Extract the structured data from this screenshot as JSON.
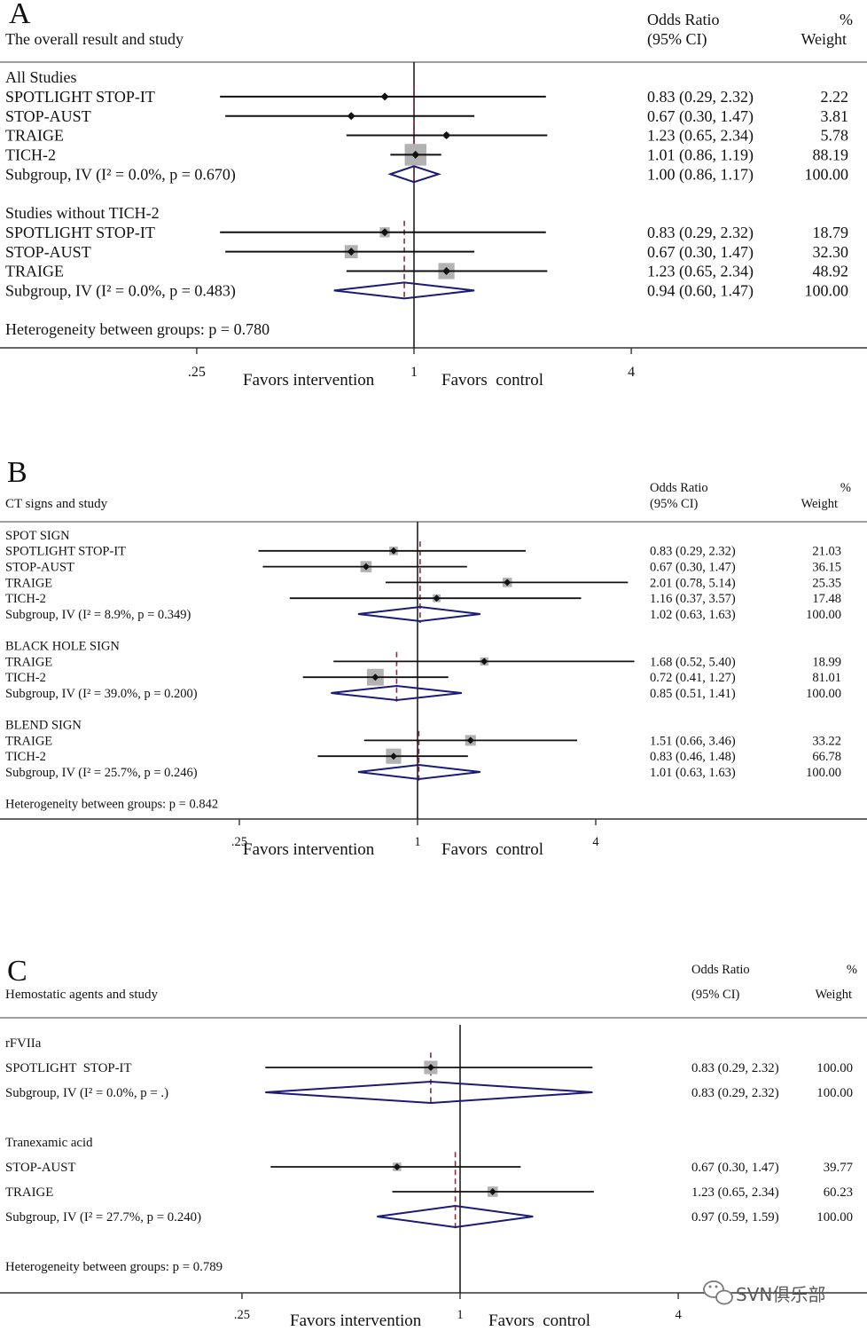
{
  "chart_data": [
    {
      "type": "scatter",
      "panel_label": "A",
      "title": "The overall result and study",
      "estimate_header": [
        "Odds Ratio",
        "(95% CI)"
      ],
      "weight_header": [
        "%",
        "Weight"
      ],
      "x_scale": "log",
      "null_value": 1,
      "x_ticks": [
        {
          "value": 0.25,
          "label": ".25"
        },
        {
          "value": 1,
          "label": "1"
        },
        {
          "value": 4,
          "label": "4"
        }
      ],
      "xlabel_left": "Favors intervention",
      "xlabel_right": "Favors  control",
      "groups": [
        {
          "label": "All Studies",
          "studies": [
            {
              "name": "SPOTLIGHT STOP-IT",
              "or": 0.83,
              "ci": [
                0.29,
                2.32
              ],
              "estimate": "0.83 (0.29, 2.32)",
              "weight": 2.22,
              "weight_text": "2.22"
            },
            {
              "name": "STOP-AUST",
              "or": 0.67,
              "ci": [
                0.3,
                1.47
              ],
              "estimate": "0.67 (0.30, 1.47)",
              "weight": 3.81,
              "weight_text": "3.81"
            },
            {
              "name": "TRAIGE",
              "or": 1.23,
              "ci": [
                0.65,
                2.34
              ],
              "estimate": "1.23 (0.65, 2.34)",
              "weight": 5.78,
              "weight_text": "5.78"
            },
            {
              "name": "TICH-2",
              "or": 1.01,
              "ci": [
                0.86,
                1.19
              ],
              "estimate": "1.01 (0.86, 1.19)",
              "weight": 88.19,
              "weight_text": "88.19"
            }
          ],
          "subgroup": {
            "label": "Subgroup, IV (I² = 0.0%, p = 0.670)",
            "or": 1.0,
            "ci": [
              0.86,
              1.17
            ],
            "estimate": "1.00 (0.86, 1.17)",
            "weight_text": "100.00"
          }
        },
        {
          "label": "Studies without TICH-2",
          "studies": [
            {
              "name": "SPOTLIGHT STOP-IT",
              "or": 0.83,
              "ci": [
                0.29,
                2.32
              ],
              "estimate": "0.83 (0.29, 2.32)",
              "weight": 18.79,
              "weight_text": "18.79"
            },
            {
              "name": "STOP-AUST",
              "or": 0.67,
              "ci": [
                0.3,
                1.47
              ],
              "estimate": "0.67 (0.30, 1.47)",
              "weight": 32.3,
              "weight_text": "32.30"
            },
            {
              "name": "TRAIGE",
              "or": 1.23,
              "ci": [
                0.65,
                2.34
              ],
              "estimate": "1.23 (0.65, 2.34)",
              "weight": 48.92,
              "weight_text": "48.92"
            }
          ],
          "subgroup": {
            "label": "Subgroup, IV (I² = 0.0%, p = 0.483)",
            "or": 0.94,
            "ci": [
              0.6,
              1.47
            ],
            "estimate": "0.94 (0.60, 1.47)",
            "weight_text": "100.00"
          }
        }
      ],
      "heterogeneity": "Heterogeneity between groups: p = 0.780"
    },
    {
      "type": "scatter",
      "panel_label": "B",
      "title": "CT signs and study",
      "estimate_header": [
        "Odds Ratio",
        "(95% CI)"
      ],
      "weight_header": [
        "%",
        "Weight"
      ],
      "x_scale": "log",
      "null_value": 1,
      "x_ticks": [
        {
          "value": 0.25,
          "label": ".25"
        },
        {
          "value": 1,
          "label": "1"
        },
        {
          "value": 4,
          "label": "4"
        }
      ],
      "xlabel_left": "Favors intervention",
      "xlabel_right": "Favors  control",
      "groups": [
        {
          "label": "SPOT SIGN",
          "studies": [
            {
              "name": "SPOTLIGHT STOP-IT",
              "or": 0.83,
              "ci": [
                0.29,
                2.32
              ],
              "estimate": "0.83 (0.29, 2.32)",
              "weight": 21.03,
              "weight_text": "21.03"
            },
            {
              "name": "STOP-AUST",
              "or": 0.67,
              "ci": [
                0.3,
                1.47
              ],
              "estimate": "0.67 (0.30, 1.47)",
              "weight": 36.15,
              "weight_text": "36.15"
            },
            {
              "name": "TRAIGE",
              "or": 2.01,
              "ci": [
                0.78,
                5.14
              ],
              "estimate": "2.01 (0.78, 5.14)",
              "weight": 25.35,
              "weight_text": "25.35"
            },
            {
              "name": "TICH-2",
              "or": 1.16,
              "ci": [
                0.37,
                3.57
              ],
              "estimate": "1.16 (0.37, 3.57)",
              "weight": 17.48,
              "weight_text": "17.48"
            }
          ],
          "subgroup": {
            "label": "Subgroup, IV (I² = 8.9%, p = 0.349)",
            "or": 1.02,
            "ci": [
              0.63,
              1.63
            ],
            "estimate": "1.02 (0.63, 1.63)",
            "weight_text": "100.00"
          }
        },
        {
          "label": "BLACK HOLE SIGN",
          "studies": [
            {
              "name": "TRAIGE",
              "or": 1.68,
              "ci": [
                0.52,
                5.4
              ],
              "estimate": "1.68 (0.52, 5.40)",
              "weight": 18.99,
              "weight_text": "18.99"
            },
            {
              "name": "TICH-2",
              "or": 0.72,
              "ci": [
                0.41,
                1.27
              ],
              "estimate": "0.72 (0.41, 1.27)",
              "weight": 81.01,
              "weight_text": "81.01"
            }
          ],
          "subgroup": {
            "label": "Subgroup, IV (I² = 39.0%, p = 0.200)",
            "or": 0.85,
            "ci": [
              0.51,
              1.41
            ],
            "estimate": "0.85 (0.51, 1.41)",
            "weight_text": "100.00"
          }
        },
        {
          "label": "BLEND SIGN",
          "studies": [
            {
              "name": "TRAIGE",
              "or": 1.51,
              "ci": [
                0.66,
                3.46
              ],
              "estimate": "1.51 (0.66, 3.46)",
              "weight": 33.22,
              "weight_text": "33.22"
            },
            {
              "name": "TICH-2",
              "or": 0.83,
              "ci": [
                0.46,
                1.48
              ],
              "estimate": "0.83 (0.46, 1.48)",
              "weight": 66.78,
              "weight_text": "66.78"
            }
          ],
          "subgroup": {
            "label": "Subgroup, IV (I² = 25.7%, p = 0.246)",
            "or": 1.01,
            "ci": [
              0.63,
              1.63
            ],
            "estimate": "1.01 (0.63, 1.63)",
            "weight_text": "100.00"
          }
        }
      ],
      "heterogeneity": "Heterogeneity between groups: p = 0.842"
    },
    {
      "type": "scatter",
      "panel_label": "C",
      "title": "Hemostatic agents and study",
      "estimate_header": [
        "Odds Ratio",
        "(95% CI)"
      ],
      "weight_header": [
        "%",
        "Weight"
      ],
      "x_scale": "log",
      "null_value": 1,
      "x_ticks": [
        {
          "value": 0.25,
          "label": ".25"
        },
        {
          "value": 1,
          "label": "1"
        },
        {
          "value": 4,
          "label": "4"
        }
      ],
      "xlabel_left": "Favors intervention",
      "xlabel_right": "Favors  control",
      "groups": [
        {
          "label": "rFVIIa",
          "studies": [
            {
              "name": "SPOTLIGHT  STOP-IT",
              "or": 0.83,
              "ci": [
                0.29,
                2.32
              ],
              "estimate": "0.83 (0.29, 2.32)",
              "weight": 100.0,
              "weight_text": "100.00"
            }
          ],
          "subgroup": {
            "label": "Subgroup, IV (I² = 0.0%, p = .)",
            "or": 0.83,
            "ci": [
              0.29,
              2.32
            ],
            "estimate": "0.83 (0.29, 2.32)",
            "weight_text": "100.00"
          }
        },
        {
          "label": "Tranexamic acid",
          "studies": [
            {
              "name": "STOP-AUST",
              "or": 0.67,
              "ci": [
                0.3,
                1.47
              ],
              "estimate": "0.67 (0.30, 1.47)",
              "weight": 39.77,
              "weight_text": "39.77"
            },
            {
              "name": "TRAIGE",
              "or": 1.23,
              "ci": [
                0.65,
                2.34
              ],
              "estimate": "1.23 (0.65, 2.34)",
              "weight": 60.23,
              "weight_text": "60.23"
            }
          ],
          "subgroup": {
            "label": "Subgroup, IV (I² = 27.7%, p = 0.240)",
            "or": 0.97,
            "ci": [
              0.59,
              1.59
            ],
            "estimate": "0.97 (0.59, 1.59)",
            "weight_text": "100.00"
          }
        }
      ],
      "heterogeneity": "Heterogeneity between groups: p = 0.789"
    }
  ],
  "watermark": {
    "text": "SVN俱乐部",
    "icon": "wechat-icon"
  },
  "colors": {
    "diamond": "#1a1a78",
    "weight_square": "#b2b2b2",
    "pooled_line": "#8b2d3e"
  }
}
